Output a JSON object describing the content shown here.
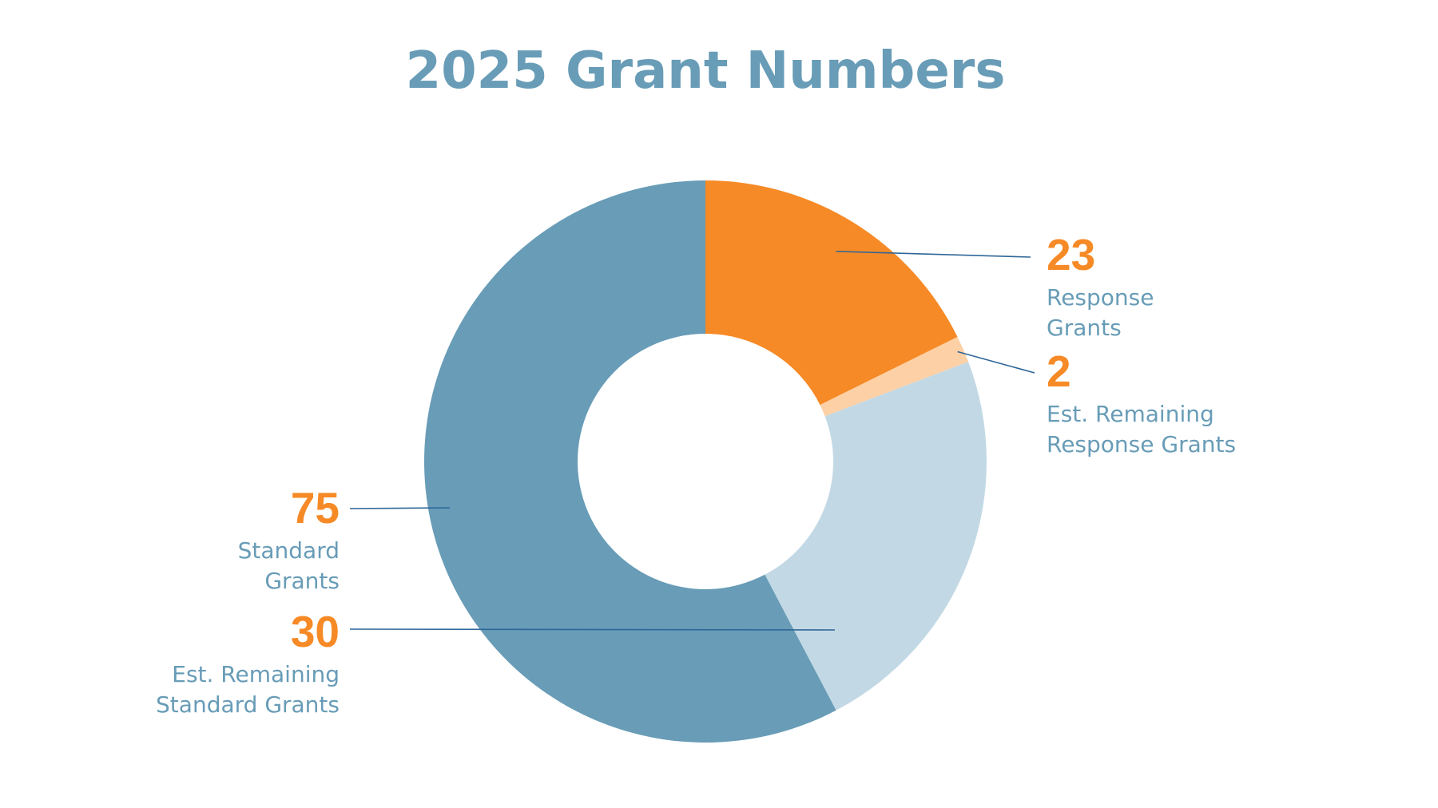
{
  "chart_data": {
    "type": "pie",
    "title": "2025 Grant Numbers",
    "slices": [
      {
        "value": 23,
        "value_label": "23",
        "label_lines": [
          "Response",
          "Grants"
        ],
        "color": "#F68A26"
      },
      {
        "value": 2,
        "value_label": "2",
        "label_lines": [
          "Est. Remaining",
          "Response Grants"
        ],
        "color": "#FDD0A5"
      },
      {
        "value": 30,
        "value_label": "30",
        "label_lines": [
          "Est. Remaining",
          "Standard Grants"
        ],
        "color": "#C2D9E5"
      },
      {
        "value": 75,
        "value_label": "75",
        "label_lines": [
          "Standard",
          "Grants"
        ],
        "color": "#689CB7"
      }
    ]
  },
  "colors": {
    "title": "#689CB7",
    "value_text": "#F68A26",
    "label_text": "#689CB7",
    "leader_line": "#2E6698"
  }
}
